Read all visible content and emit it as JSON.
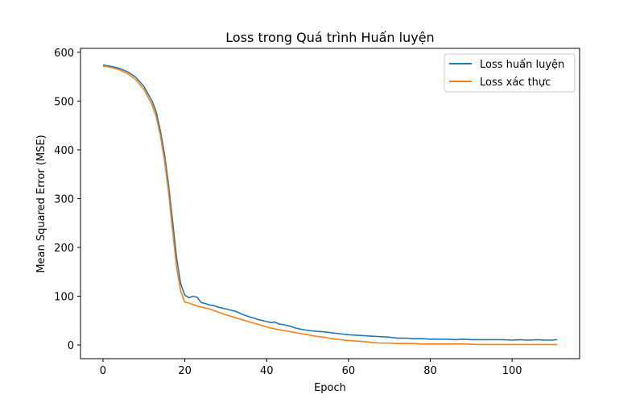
{
  "chart_data": {
    "type": "line",
    "title": "Loss trong Quá trình Huấn luyện",
    "xlabel": "Epoch",
    "ylabel": "Mean Squared Error (MSE)",
    "xlim": [
      -5.5,
      116.5
    ],
    "ylim": [
      -28,
      608
    ],
    "xticks": [
      0,
      20,
      40,
      60,
      80,
      100
    ],
    "yticks": [
      0,
      100,
      200,
      300,
      400,
      500,
      600
    ],
    "grid": false,
    "legend_position": "top-right",
    "series": [
      {
        "name": "Loss huấn luyện",
        "color": "#1f77b4",
        "points": [
          [
            0,
            574
          ],
          [
            2,
            571
          ],
          [
            4,
            567
          ],
          [
            6,
            560
          ],
          [
            8,
            549
          ],
          [
            10,
            530
          ],
          [
            12,
            500
          ],
          [
            13,
            478
          ],
          [
            14,
            440
          ],
          [
            15,
            393
          ],
          [
            16,
            330
          ],
          [
            17,
            255
          ],
          [
            18,
            178
          ],
          [
            19,
            125
          ],
          [
            20,
            102
          ],
          [
            21,
            97
          ],
          [
            22,
            100
          ],
          [
            23,
            98
          ],
          [
            24,
            87
          ],
          [
            25,
            85
          ],
          [
            26,
            82
          ],
          [
            27,
            81
          ],
          [
            28,
            78
          ],
          [
            29,
            76
          ],
          [
            30,
            74
          ],
          [
            31,
            72
          ],
          [
            32,
            70
          ],
          [
            33,
            67
          ],
          [
            34,
            63
          ],
          [
            35,
            60
          ],
          [
            36,
            57
          ],
          [
            37,
            55
          ],
          [
            38,
            52
          ],
          [
            39,
            50
          ],
          [
            40,
            48
          ],
          [
            41,
            46
          ],
          [
            42,
            47
          ],
          [
            43,
            43
          ],
          [
            44,
            42
          ],
          [
            45,
            40
          ],
          [
            46,
            38
          ],
          [
            47,
            35
          ],
          [
            48,
            33
          ],
          [
            50,
            30
          ],
          [
            52,
            28
          ],
          [
            54,
            27
          ],
          [
            56,
            25
          ],
          [
            58,
            23
          ],
          [
            60,
            21
          ],
          [
            62,
            20
          ],
          [
            64,
            19
          ],
          [
            66,
            18
          ],
          [
            68,
            17
          ],
          [
            70,
            16
          ],
          [
            72,
            14
          ],
          [
            74,
            14
          ],
          [
            76,
            13
          ],
          [
            78,
            13
          ],
          [
            80,
            12
          ],
          [
            82,
            12
          ],
          [
            84,
            12
          ],
          [
            86,
            11
          ],
          [
            88,
            12
          ],
          [
            90,
            11
          ],
          [
            92,
            11
          ],
          [
            94,
            11
          ],
          [
            96,
            11
          ],
          [
            98,
            11
          ],
          [
            100,
            10
          ],
          [
            102,
            11
          ],
          [
            104,
            10
          ],
          [
            106,
            11
          ],
          [
            108,
            10
          ],
          [
            110,
            10
          ],
          [
            111,
            11
          ]
        ]
      },
      {
        "name": "Loss xác thực",
        "color": "#ff7f0e",
        "points": [
          [
            0,
            572
          ],
          [
            2,
            569
          ],
          [
            4,
            564
          ],
          [
            6,
            556
          ],
          [
            8,
            544
          ],
          [
            10,
            524
          ],
          [
            12,
            492
          ],
          [
            13,
            468
          ],
          [
            14,
            430
          ],
          [
            15,
            380
          ],
          [
            16,
            315
          ],
          [
            17,
            235
          ],
          [
            18,
            158
          ],
          [
            19,
            110
          ],
          [
            20,
            88
          ],
          [
            21,
            86
          ],
          [
            22,
            83
          ],
          [
            23,
            80
          ],
          [
            24,
            78
          ],
          [
            26,
            74
          ],
          [
            28,
            68
          ],
          [
            30,
            62
          ],
          [
            32,
            57
          ],
          [
            34,
            52
          ],
          [
            36,
            47
          ],
          [
            38,
            42
          ],
          [
            40,
            37
          ],
          [
            42,
            33
          ],
          [
            44,
            30
          ],
          [
            46,
            27
          ],
          [
            48,
            24
          ],
          [
            50,
            21
          ],
          [
            52,
            18
          ],
          [
            54,
            16
          ],
          [
            56,
            13
          ],
          [
            58,
            11
          ],
          [
            60,
            9
          ],
          [
            62,
            8
          ],
          [
            64,
            7
          ],
          [
            66,
            5
          ],
          [
            68,
            4
          ],
          [
            70,
            4
          ],
          [
            72,
            3
          ],
          [
            74,
            3
          ],
          [
            76,
            3
          ],
          [
            78,
            2
          ],
          [
            80,
            2
          ],
          [
            84,
            2
          ],
          [
            88,
            2
          ],
          [
            92,
            1
          ],
          [
            96,
            1
          ],
          [
            100,
            1
          ],
          [
            104,
            1
          ],
          [
            108,
            1
          ],
          [
            111,
            1
          ]
        ]
      }
    ]
  }
}
